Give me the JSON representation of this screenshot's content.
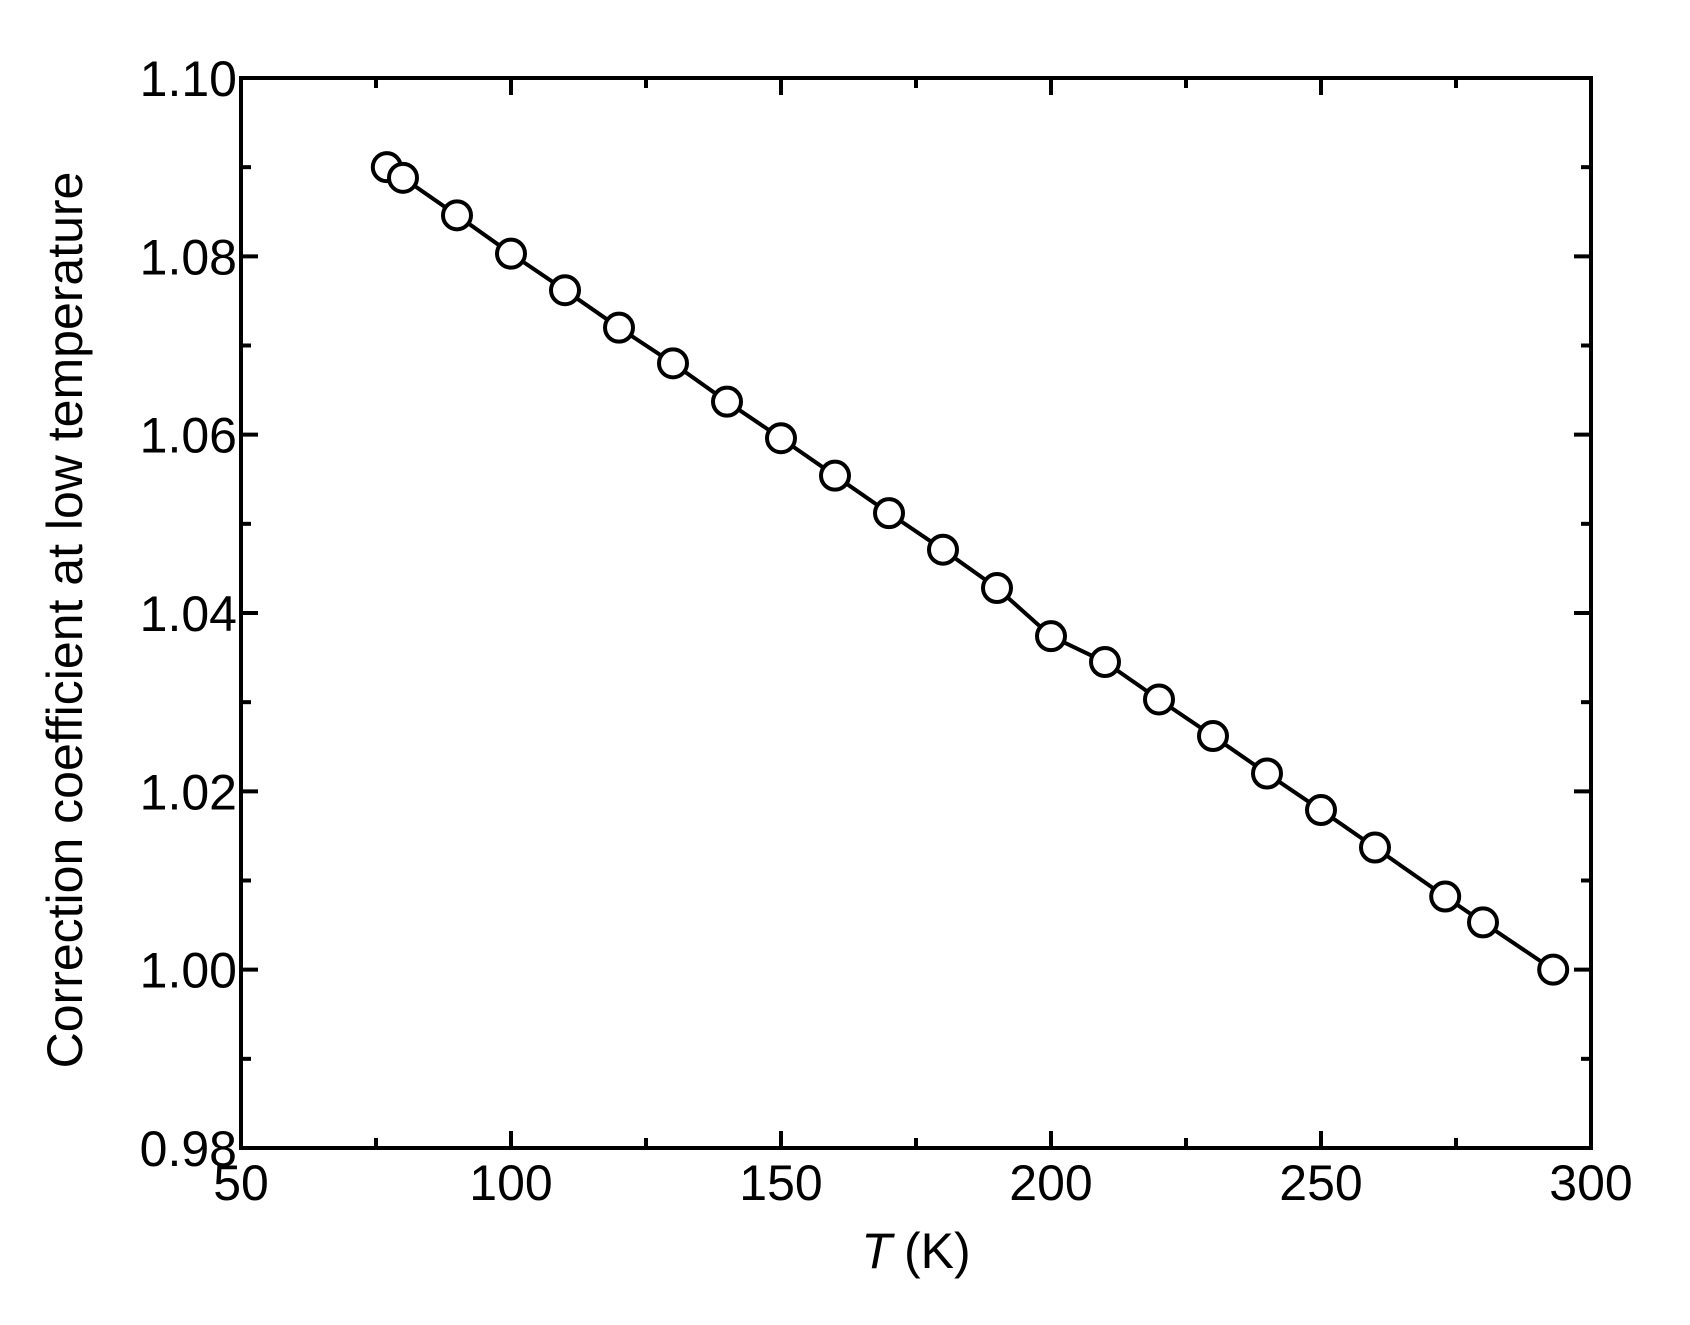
{
  "chart_data": {
    "type": "line",
    "xlabel_symbol": "T",
    "xlabel_unit": "(K)",
    "ylabel": "Correction coefficient at low temperature",
    "x": [
      77,
      80,
      90,
      100,
      110,
      120,
      130,
      140,
      150,
      160,
      170,
      180,
      190,
      200,
      210,
      220,
      230,
      240,
      250,
      260,
      273,
      280,
      293
    ],
    "series": [
      {
        "color": "#000000",
        "values": [
          1.09,
          1.0888,
          1.0846,
          1.0803,
          1.0762,
          1.072,
          1.068,
          1.0637,
          1.0596,
          1.0554,
          1.0512,
          1.0471,
          1.0428,
          1.0374,
          1.0345,
          1.0303,
          1.0262,
          1.022,
          1.0179,
          1.0137,
          1.0082,
          1.0053,
          1.0
        ]
      }
    ],
    "xlim": [
      50,
      300
    ],
    "xticks": [
      50,
      100,
      150,
      200,
      250,
      300
    ],
    "xminorticks": [
      75,
      125,
      175,
      225,
      275
    ],
    "ylim": [
      0.98,
      1.1
    ],
    "yticks": [
      {
        "value": 0.98,
        "label": "0.98"
      },
      {
        "value": 1.0,
        "label": "1.00"
      },
      {
        "value": 1.02,
        "label": "1.02"
      },
      {
        "value": 1.04,
        "label": "1.04"
      },
      {
        "value": 1.06,
        "label": "1.06"
      },
      {
        "value": 1.08,
        "label": "1.08"
      },
      {
        "value": 1.1,
        "label": "1.10"
      }
    ],
    "yminorticks": [
      0.99,
      1.01,
      1.03,
      1.05,
      1.07,
      1.09
    ],
    "grid": false
  }
}
